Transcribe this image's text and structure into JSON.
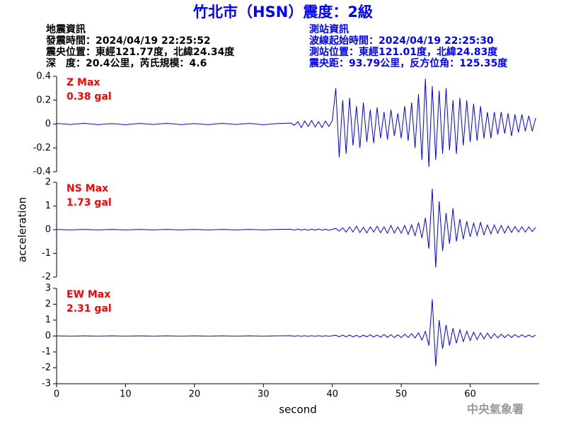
{
  "header": {
    "title": "竹北市（HSN）震度：2級",
    "left_info": [
      "地震資訊",
      "發震時間：2024/04/19 22:25:52",
      "震央位置：東經121.77度，北緯24.34度",
      "深　度：20.4公里，芮氏規模：4.6"
    ],
    "right_info": [
      "測站資訊",
      "波線起始時間：2024/04/19 22:25:30",
      "測站位置：東經121.01度，北緯24.83度",
      "震央距：93.79公里，反方位角：125.35度"
    ],
    "watermark": "中央氣象署"
  },
  "chart_data": [
    {
      "type": "line",
      "annotations": [
        "Z Max",
        "0.38 gal"
      ],
      "xlim": [
        0,
        70
      ],
      "ylim": [
        -0.4,
        0.4
      ],
      "yticks": [
        0.4,
        0.2,
        0,
        -0.2,
        -0.4
      ],
      "x": [
        0,
        2,
        4,
        6,
        8,
        10,
        12,
        14,
        16,
        18,
        20,
        22,
        24,
        26,
        28,
        30,
        32,
        34,
        34.5,
        35,
        35.5,
        36,
        36.5,
        37,
        37.5,
        38,
        38.5,
        39,
        39.5,
        40,
        40.5,
        41,
        41.5,
        42,
        42.5,
        43,
        43.5,
        44,
        44.5,
        45,
        45.5,
        46,
        46.5,
        47,
        47.5,
        48,
        48.5,
        49,
        49.5,
        50,
        50.5,
        51,
        51.5,
        52,
        52.5,
        53,
        53.5,
        54,
        54.5,
        55,
        55.5,
        56,
        56.5,
        57,
        57.5,
        58,
        58.5,
        59,
        59.5,
        60,
        60.5,
        61,
        61.5,
        62,
        62.5,
        63,
        63.5,
        64,
        64.5,
        65,
        65.5,
        66,
        66.5,
        67,
        67.5,
        68,
        68.5,
        69,
        69.5
      ],
      "series": [
        {
          "name": "Z",
          "color": "#0000ff",
          "values": [
            0.005,
            -0.004,
            0.006,
            -0.005,
            0.004,
            -0.006,
            0.005,
            -0.004,
            0.006,
            -0.005,
            0.004,
            -0.005,
            0.006,
            -0.004,
            0.005,
            -0.006,
            0.004,
            0.008,
            -0.01,
            0.02,
            -0.03,
            0.025,
            -0.02,
            0.03,
            -0.025,
            0.02,
            -0.03,
            0.025,
            -0.02,
            0.03,
            0.3,
            -0.28,
            0.2,
            -0.25,
            0.22,
            -0.18,
            0.15,
            -0.2,
            0.18,
            -0.15,
            0.12,
            -0.16,
            0.14,
            -0.12,
            0.1,
            -0.13,
            0.12,
            -0.1,
            0.09,
            -0.12,
            0.15,
            -0.14,
            0.18,
            -0.2,
            0.25,
            -0.3,
            0.38,
            -0.36,
            0.32,
            -0.3,
            0.28,
            -0.25,
            0.3,
            -0.22,
            0.2,
            -0.25,
            0.22,
            -0.18,
            0.2,
            -0.15,
            0.17,
            -0.14,
            0.15,
            -0.12,
            0.1,
            -0.12,
            0.1,
            -0.09,
            0.1,
            -0.08,
            0.09,
            -0.1,
            0.08,
            -0.07,
            0.08,
            -0.06,
            0.07,
            -0.06,
            0.05
          ]
        }
      ]
    },
    {
      "type": "line",
      "annotations": [
        "NS Max",
        "1.73 gal"
      ],
      "ylabel": "acceleration",
      "xlim": [
        0,
        70
      ],
      "ylim": [
        -2,
        2
      ],
      "yticks": [
        2,
        1,
        0,
        -1,
        -2
      ],
      "x": [
        0,
        2,
        4,
        6,
        8,
        10,
        12,
        14,
        16,
        18,
        20,
        22,
        24,
        26,
        28,
        30,
        32,
        34,
        34.5,
        35,
        35.5,
        36,
        36.5,
        37,
        37.5,
        38,
        38.5,
        39,
        39.5,
        40,
        40.5,
        41,
        41.5,
        42,
        42.5,
        43,
        43.5,
        44,
        44.5,
        45,
        45.5,
        46,
        46.5,
        47,
        47.5,
        48,
        48.5,
        49,
        49.5,
        50,
        50.5,
        51,
        51.5,
        52,
        52.5,
        53,
        53.5,
        54,
        54.5,
        55,
        55.5,
        56,
        56.5,
        57,
        57.5,
        58,
        58.5,
        59,
        59.5,
        60,
        60.5,
        61,
        61.5,
        62,
        62.5,
        63,
        63.5,
        64,
        64.5,
        65,
        65.5,
        66,
        66.5,
        67,
        67.5,
        68,
        68.5,
        69,
        69.5
      ],
      "series": [
        {
          "name": "NS",
          "color": "#0000ff",
          "values": [
            0.01,
            -0.01,
            0.01,
            -0.01,
            0.01,
            -0.01,
            0.01,
            -0.01,
            0.01,
            -0.01,
            0.01,
            -0.01,
            0.01,
            -0.01,
            0.01,
            -0.01,
            0.01,
            0.02,
            -0.02,
            0.03,
            -0.02,
            0.02,
            -0.03,
            0.02,
            -0.02,
            0.03,
            -0.02,
            0.02,
            -0.03,
            0.02,
            0.05,
            -0.06,
            0.08,
            -0.1,
            0.12,
            -0.1,
            0.15,
            -0.12,
            0.1,
            -0.14,
            0.12,
            -0.1,
            0.15,
            -0.13,
            0.12,
            -0.15,
            0.18,
            -0.14,
            0.12,
            -0.15,
            0.18,
            -0.2,
            0.2,
            -0.25,
            0.3,
            -0.35,
            0.5,
            -0.8,
            1.73,
            -1.6,
            1.2,
            -0.9,
            0.7,
            -0.6,
            0.9,
            -0.5,
            0.45,
            -0.4,
            0.35,
            -0.3,
            0.28,
            -0.25,
            0.3,
            -0.22,
            0.2,
            -0.18,
            0.2,
            -0.15,
            0.18,
            -0.14,
            0.15,
            -0.12,
            0.14,
            -0.1,
            0.12,
            -0.1,
            0.12,
            -0.08,
            0.1
          ]
        }
      ]
    },
    {
      "type": "line",
      "annotations": [
        "EW Max",
        "2.31 gal"
      ],
      "xlabel": "second",
      "xlim": [
        0,
        70
      ],
      "xticks": [
        0,
        10,
        20,
        30,
        40,
        50,
        60
      ],
      "ylim": [
        -3,
        3
      ],
      "yticks": [
        3,
        2,
        1,
        0,
        -1,
        -2,
        -3
      ],
      "x": [
        0,
        2,
        4,
        6,
        8,
        10,
        12,
        14,
        16,
        18,
        20,
        22,
        24,
        26,
        28,
        30,
        32,
        34,
        34.5,
        35,
        35.5,
        36,
        36.5,
        37,
        37.5,
        38,
        38.5,
        39,
        39.5,
        40,
        40.5,
        41,
        41.5,
        42,
        42.5,
        43,
        43.5,
        44,
        44.5,
        45,
        45.5,
        46,
        46.5,
        47,
        47.5,
        48,
        48.5,
        49,
        49.5,
        50,
        50.5,
        51,
        51.5,
        52,
        52.5,
        53,
        53.5,
        54,
        54.5,
        55,
        55.5,
        56,
        56.5,
        57,
        57.5,
        58,
        58.5,
        59,
        59.5,
        60,
        60.5,
        61,
        61.5,
        62,
        62.5,
        63,
        63.5,
        64,
        64.5,
        65,
        65.5,
        66,
        66.5,
        67,
        67.5,
        68,
        68.5,
        69,
        69.5
      ],
      "series": [
        {
          "name": "EW",
          "color": "#0000ff",
          "values": [
            0.01,
            -0.01,
            0.01,
            -0.01,
            0.01,
            -0.01,
            0.01,
            -0.01,
            0.01,
            -0.01,
            0.01,
            -0.01,
            0.01,
            -0.01,
            0.01,
            -0.01,
            0.01,
            0.02,
            -0.02,
            0.02,
            -0.02,
            0.02,
            -0.02,
            0.02,
            -0.02,
            0.02,
            -0.02,
            0.02,
            -0.02,
            0.02,
            0.05,
            -0.05,
            0.06,
            -0.05,
            0.07,
            -0.06,
            0.05,
            -0.07,
            0.06,
            -0.05,
            0.08,
            -0.06,
            0.07,
            -0.08,
            0.1,
            -0.08,
            0.09,
            -0.1,
            0.08,
            -0.1,
            0.12,
            -0.1,
            0.15,
            -0.12,
            0.2,
            -0.25,
            0.3,
            -0.6,
            2.31,
            -1.9,
            1.0,
            -0.8,
            0.7,
            -0.6,
            0.5,
            -0.45,
            0.4,
            -0.35,
            0.3,
            -0.28,
            0.25,
            -0.22,
            0.2,
            -0.18,
            0.18,
            -0.15,
            0.14,
            -0.12,
            0.12,
            -0.1,
            0.1,
            -0.09,
            0.1,
            -0.08,
            0.08,
            -0.07,
            0.07,
            -0.06,
            0.06
          ]
        }
      ]
    }
  ]
}
